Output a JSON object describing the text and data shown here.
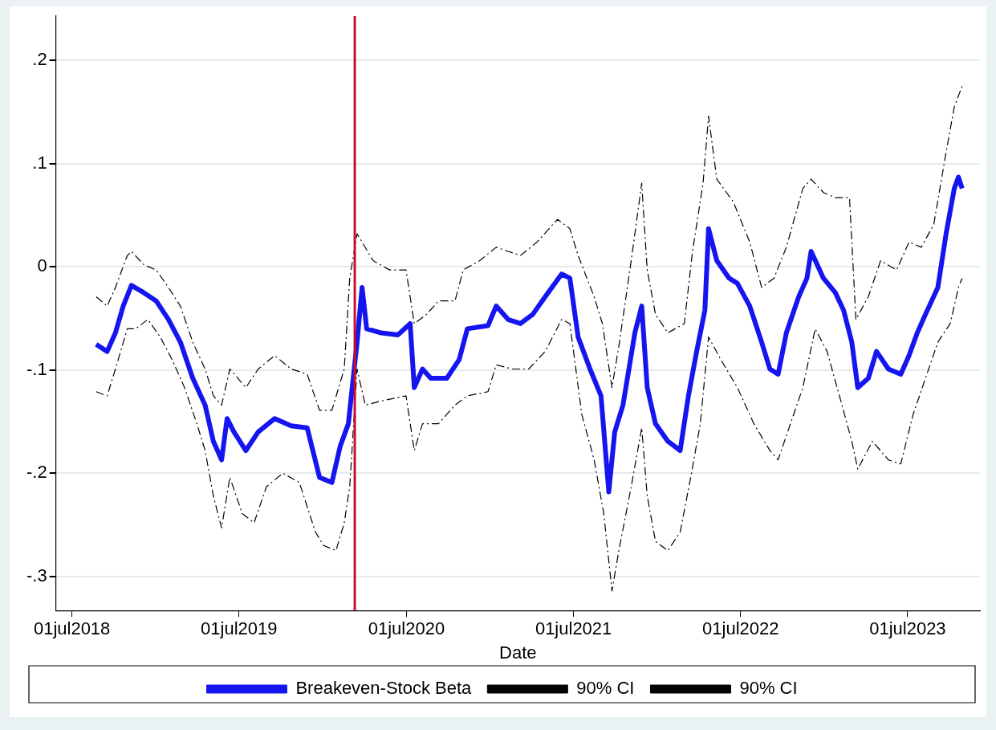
{
  "chart_data": {
    "type": "line",
    "xlabel": "Date",
    "xlim": [
      "2018-05-27",
      "2023-12-06"
    ],
    "ylim": [
      -0.333,
      0.243
    ],
    "xticks": [
      {
        "value": "2018-07-01",
        "label": "01jul2018"
      },
      {
        "value": "2019-07-01",
        "label": "01jul2019"
      },
      {
        "value": "2020-07-01",
        "label": "01jul2020"
      },
      {
        "value": "2021-07-01",
        "label": "01jul2021"
      },
      {
        "value": "2022-07-01",
        "label": "01jul2022"
      },
      {
        "value": "2023-07-01",
        "label": "01jul2023"
      }
    ],
    "yticks": [
      {
        "value": -0.3,
        "label": "-.3"
      },
      {
        "value": -0.2,
        "label": "-.2"
      },
      {
        "value": -0.1,
        "label": "-.1"
      },
      0,
      {
        "value": 0.1,
        "label": ".1"
      },
      {
        "value": 0.2,
        "label": ".2"
      }
    ],
    "grid": "y",
    "legend": "bottom",
    "marker": "none",
    "ref_lines": [
      {
        "axis": "x",
        "value": "2020-03-10",
        "color": "#c8102e",
        "line_style": "solid"
      }
    ],
    "series": [
      {
        "name": "Breakeven-Stock Beta",
        "color": "#1515f0",
        "line_style": "solid",
        "x": [
          "2018-08-23",
          "2018-09-16",
          "2018-10-04",
          "2018-10-21",
          "2018-11-08",
          "2018-12-05",
          "2019-01-01",
          "2019-01-28",
          "2019-02-23",
          "2019-03-22",
          "2019-04-18",
          "2019-05-06",
          "2019-05-24",
          "2019-06-05",
          "2019-06-20",
          "2019-07-16",
          "2019-08-12",
          "2019-09-17",
          "2019-10-23",
          "2019-11-27",
          "2019-12-24",
          "2020-01-20",
          "2020-02-07",
          "2020-02-25",
          "2020-03-15",
          "2020-03-26",
          "2020-04-05",
          "2020-05-07",
          "2020-06-12",
          "2020-07-09",
          "2020-07-18",
          "2020-08-05",
          "2020-08-23",
          "2020-09-27",
          "2020-10-24",
          "2020-11-11",
          "2020-12-26",
          "2021-01-13",
          "2021-02-08",
          "2021-03-07",
          "2021-04-03",
          "2021-04-30",
          "2021-06-05",
          "2021-06-23",
          "2021-07-11",
          "2021-08-06",
          "2021-08-30",
          "2021-09-16",
          "2021-09-29",
          "2021-10-17",
          "2021-11-12",
          "2021-11-27",
          "2021-12-09",
          "2021-12-27",
          "2022-01-23",
          "2022-02-19",
          "2022-03-09",
          "2022-03-27",
          "2022-04-14",
          "2022-04-22",
          "2022-05-10",
          "2022-06-06",
          "2022-06-24",
          "2022-07-21",
          "2022-08-16",
          "2022-09-03",
          "2022-09-21",
          "2022-10-09",
          "2022-11-05",
          "2022-11-23",
          "2022-12-02",
          "2022-12-29",
          "2023-01-24",
          "2023-02-11",
          "2023-03-01",
          "2023-03-14",
          "2023-04-06",
          "2023-04-24",
          "2023-05-20",
          "2023-06-16",
          "2023-07-04",
          "2023-07-22",
          "2023-08-09",
          "2023-09-05",
          "2023-09-23",
          "2023-10-11",
          "2023-10-20",
          "2023-10-28"
        ],
        "values": [
          -0.075,
          -0.082,
          -0.064,
          -0.038,
          -0.018,
          -0.025,
          -0.033,
          -0.051,
          -0.073,
          -0.108,
          -0.134,
          -0.169,
          -0.187,
          -0.147,
          -0.16,
          -0.178,
          -0.16,
          -0.147,
          -0.154,
          -0.156,
          -0.204,
          -0.209,
          -0.174,
          -0.152,
          -0.073,
          -0.02,
          -0.06,
          -0.064,
          -0.066,
          -0.055,
          -0.117,
          -0.099,
          -0.108,
          -0.108,
          -0.09,
          -0.06,
          -0.057,
          -0.038,
          -0.051,
          -0.055,
          -0.046,
          -0.029,
          -0.007,
          -0.011,
          -0.068,
          -0.099,
          -0.125,
          -0.218,
          -0.16,
          -0.134,
          -0.064,
          -0.038,
          -0.117,
          -0.152,
          -0.169,
          -0.178,
          -0.125,
          -0.082,
          -0.042,
          0.037,
          0.006,
          -0.011,
          -0.016,
          -0.038,
          -0.073,
          -0.099,
          -0.104,
          -0.064,
          -0.029,
          -0.011,
          0.015,
          -0.011,
          -0.025,
          -0.042,
          -0.073,
          -0.117,
          -0.108,
          -0.082,
          -0.099,
          -0.104,
          -0.086,
          -0.064,
          -0.046,
          -0.02,
          0.032,
          0.076,
          0.087,
          0.076
        ]
      },
      {
        "name": "90% CI",
        "color": "#000000",
        "line_style": "dashed",
        "x": [
          "2018-08-23",
          "2018-09-16",
          "2018-10-04",
          "2018-10-30",
          "2018-11-08",
          "2018-12-05",
          "2019-01-01",
          "2019-01-28",
          "2019-02-23",
          "2019-03-22",
          "2019-04-18",
          "2019-05-06",
          "2019-05-24",
          "2019-06-11",
          "2019-07-16",
          "2019-08-12",
          "2019-09-17",
          "2019-10-23",
          "2019-11-27",
          "2019-12-24",
          "2020-01-20",
          "2020-02-16",
          "2020-02-28",
          "2020-03-15",
          "2020-03-26",
          "2020-04-19",
          "2020-05-25",
          "2020-06-30",
          "2020-07-18",
          "2020-08-14",
          "2020-09-09",
          "2020-10-15",
          "2020-11-02",
          "2020-12-08",
          "2021-01-13",
          "2021-02-08",
          "2021-03-07",
          "2021-04-12",
          "2021-05-27",
          "2021-06-23",
          "2021-07-11",
          "2021-08-15",
          "2021-09-02",
          "2021-09-23",
          "2021-10-08",
          "2021-11-04",
          "2021-11-27",
          "2021-12-09",
          "2021-12-27",
          "2022-01-23",
          "2022-02-28",
          "2022-03-18",
          "2022-04-10",
          "2022-04-22",
          "2022-05-10",
          "2022-06-15",
          "2022-07-21",
          "2022-08-16",
          "2022-09-12",
          "2022-10-09",
          "2022-11-14",
          "2022-12-02",
          "2022-12-29",
          "2023-01-24",
          "2023-02-24",
          "2023-03-10",
          "2023-04-06",
          "2023-05-03",
          "2023-06-07",
          "2023-07-04",
          "2023-07-31",
          "2023-08-27",
          "2023-09-23",
          "2023-10-11",
          "2023-10-28"
        ],
        "values": [
          -0.029,
          -0.038,
          -0.02,
          0.011,
          0.015,
          0.002,
          -0.003,
          -0.02,
          -0.038,
          -0.073,
          -0.099,
          -0.125,
          -0.134,
          -0.099,
          -0.117,
          -0.099,
          -0.086,
          -0.099,
          -0.104,
          -0.139,
          -0.139,
          -0.099,
          -0.011,
          0.032,
          0.024,
          0.006,
          -0.003,
          -0.003,
          -0.055,
          -0.046,
          -0.033,
          -0.033,
          -0.003,
          0.006,
          0.019,
          0.015,
          0.011,
          0.024,
          0.046,
          0.037,
          0.011,
          -0.029,
          -0.055,
          -0.117,
          -0.077,
          0.006,
          0.081,
          -0.003,
          -0.046,
          -0.064,
          -0.055,
          0.015,
          0.081,
          0.146,
          0.085,
          0.063,
          0.024,
          -0.02,
          -0.011,
          0.019,
          0.076,
          0.085,
          0.072,
          0.067,
          0.067,
          -0.051,
          -0.029,
          0.006,
          -0.003,
          0.024,
          0.019,
          0.041,
          0.111,
          0.155,
          0.175
        ]
      },
      {
        "name": "90% CI",
        "color": "#000000",
        "line_style": "dashed",
        "x": [
          "2018-08-23",
          "2018-09-16",
          "2018-10-04",
          "2018-10-30",
          "2018-11-17",
          "2018-12-14",
          "2019-01-10",
          "2019-02-05",
          "2019-03-04",
          "2019-03-31",
          "2019-04-18",
          "2019-05-06",
          "2019-05-24",
          "2019-06-11",
          "2019-07-08",
          "2019-08-03",
          "2019-08-30",
          "2019-10-05",
          "2019-11-10",
          "2019-12-15",
          "2020-01-02",
          "2020-01-29",
          "2020-02-16",
          "2020-02-28",
          "2020-03-15",
          "2020-04-02",
          "2020-05-07",
          "2020-06-30",
          "2020-07-18",
          "2020-08-05",
          "2020-09-09",
          "2020-10-15",
          "2020-11-11",
          "2020-12-26",
          "2021-01-13",
          "2021-02-17",
          "2021-03-25",
          "2021-04-30",
          "2021-06-05",
          "2021-06-23",
          "2021-07-19",
          "2021-08-15",
          "2021-09-05",
          "2021-09-23",
          "2021-10-08",
          "2021-11-04",
          "2021-11-27",
          "2021-12-09",
          "2021-12-27",
          "2022-01-23",
          "2022-02-19",
          "2022-03-14",
          "2022-04-04",
          "2022-04-22",
          "2022-05-19",
          "2022-06-24",
          "2022-07-30",
          "2022-09-03",
          "2022-09-21",
          "2022-10-18",
          "2022-11-14",
          "2022-12-11",
          "2023-01-06",
          "2023-02-02",
          "2023-03-01",
          "2023-03-14",
          "2023-04-15",
          "2023-05-20",
          "2023-06-16",
          "2023-07-13",
          "2023-08-09",
          "2023-09-05",
          "2023-10-02",
          "2023-10-20",
          "2023-10-28"
        ],
        "values": [
          -0.121,
          -0.125,
          -0.099,
          -0.06,
          -0.06,
          -0.051,
          -0.068,
          -0.09,
          -0.117,
          -0.152,
          -0.178,
          -0.222,
          -0.253,
          -0.204,
          -0.239,
          -0.248,
          -0.213,
          -0.2,
          -0.209,
          -0.257,
          -0.27,
          -0.275,
          -0.248,
          -0.213,
          -0.099,
          -0.134,
          -0.13,
          -0.125,
          -0.178,
          -0.152,
          -0.152,
          -0.134,
          -0.125,
          -0.121,
          -0.095,
          -0.099,
          -0.099,
          -0.082,
          -0.051,
          -0.055,
          -0.143,
          -0.187,
          -0.239,
          -0.314,
          -0.275,
          -0.213,
          -0.156,
          -0.222,
          -0.266,
          -0.275,
          -0.257,
          -0.204,
          -0.152,
          -0.068,
          -0.09,
          -0.117,
          -0.152,
          -0.178,
          -0.187,
          -0.152,
          -0.117,
          -0.06,
          -0.082,
          -0.125,
          -0.169,
          -0.196,
          -0.169,
          -0.187,
          -0.191,
          -0.143,
          -0.108,
          -0.073,
          -0.055,
          -0.02,
          -0.011
        ]
      }
    ]
  }
}
